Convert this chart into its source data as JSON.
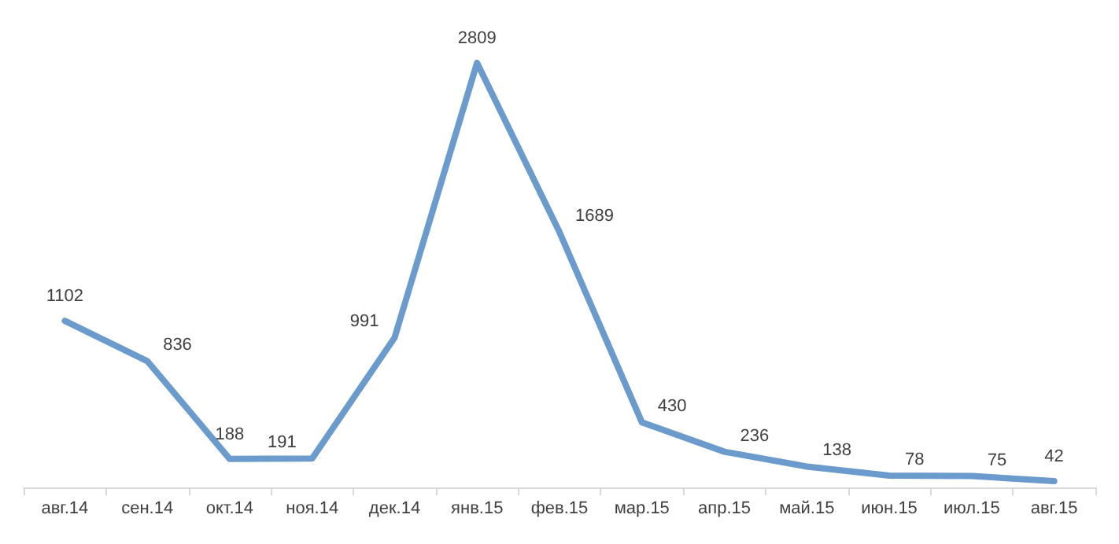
{
  "chart_data": {
    "type": "line",
    "categories": [
      "авг.14",
      "сен.14",
      "окт.14",
      "ноя.14",
      "дек.14",
      "янв.15",
      "фев.15",
      "мар.15",
      "апр.15",
      "май.15",
      "июн.15",
      "июл.15",
      "авг.15"
    ],
    "series": [
      {
        "color": "#6b9bcc",
        "values": [
          1102,
          836,
          188,
          191,
          991,
          2809,
          1689,
          430,
          236,
          138,
          78,
          75,
          42
        ]
      }
    ],
    "data_labels": true,
    "marker": "none",
    "line_style": "solid"
  }
}
